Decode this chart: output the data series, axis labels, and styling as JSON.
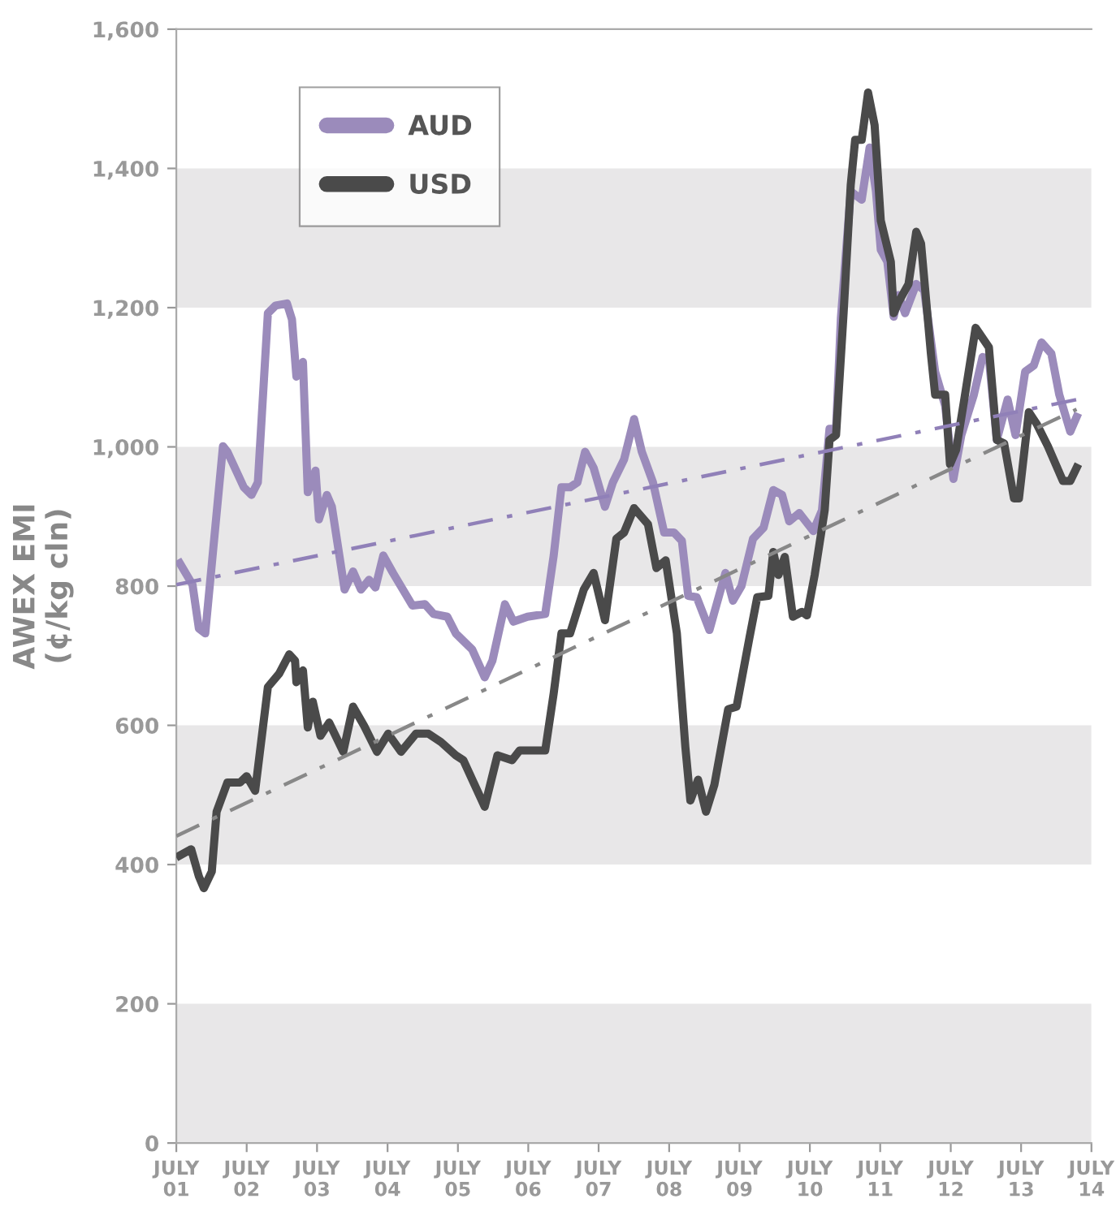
{
  "chart_data": {
    "type": "line",
    "ylabel": "AWEX EMI\n(¢/kg cln)",
    "xlim": [
      "2001-07-01",
      "2014-07-01"
    ],
    "xticks": [
      {
        "value": "2001-07-01",
        "label": "JULY\n01"
      },
      {
        "value": "2002-07-01",
        "label": "JULY\n02"
      },
      {
        "value": "2003-07-01",
        "label": "JULY\n03"
      },
      {
        "value": "2004-07-01",
        "label": "JULY\n04"
      },
      {
        "value": "2005-07-01",
        "label": "JULY\n05"
      },
      {
        "value": "2006-07-01",
        "label": "JULY\n06"
      },
      {
        "value": "2007-07-01",
        "label": "JULY\n07"
      },
      {
        "value": "2008-07-01",
        "label": "JULY\n08"
      },
      {
        "value": "2009-07-01",
        "label": "JULY\n09"
      },
      {
        "value": "2010-07-01",
        "label": "JULY\n10"
      },
      {
        "value": "2011-07-01",
        "label": "JULY\n11"
      },
      {
        "value": "2012-07-01",
        "label": "JULY\n12"
      },
      {
        "value": "2013-07-01",
        "label": "JULY\n13"
      },
      {
        "value": "2014-07-01",
        "label": "JULY\n14"
      }
    ],
    "ylim": [
      0,
      1600
    ],
    "yticks": [
      0,
      200,
      400,
      600,
      800,
      {
        "value": 1000,
        "label": "1,000"
      },
      {
        "value": 1200,
        "label": "1,200"
      },
      {
        "value": 1400,
        "label": "1,400"
      },
      {
        "value": 1600,
        "label": "1,600"
      }
    ],
    "bands": [
      {
        "axis": "y",
        "from": 0,
        "to": 200,
        "color": "#e8e7e8"
      },
      {
        "axis": "y",
        "from": 400,
        "to": 600,
        "color": "#e8e7e8"
      },
      {
        "axis": "y",
        "from": 800,
        "to": 1000,
        "color": "#e8e7e8"
      },
      {
        "axis": "y",
        "from": 1200,
        "to": 1400,
        "color": "#e8e7e8"
      }
    ],
    "legend": "top left",
    "grid": false,
    "marker": "none",
    "series": [
      {
        "name": "AUD",
        "color": "#9b8bbb",
        "line_style": "solid",
        "x": [
          "2001-07-19",
          "2001-09-23",
          "2001-10-26",
          "2001-11-28",
          "2002-02-28",
          "2002-03-23",
          "2002-06-16",
          "2002-07-26",
          "2002-08-28",
          "2002-10-19",
          "2002-11-28",
          "2003-01-26",
          "2003-02-21",
          "2003-03-16",
          "2003-04-19",
          "2003-05-14",
          "2003-06-23",
          "2003-07-11",
          "2003-08-21",
          "2003-09-16",
          "2003-11-21",
          "2004-01-04",
          "2004-02-14",
          "2004-03-27",
          "2004-04-29",
          "2004-06-09",
          "2004-07-29",
          "2004-11-07",
          "2005-01-11",
          "2005-02-25",
          "2005-05-07",
          "2005-06-20",
          "2005-09-13",
          "2005-11-17",
          "2005-12-27",
          "2006-03-02",
          "2006-04-15",
          "2006-06-27",
          "2006-09-27",
          "2006-11-10",
          "2006-12-20",
          "2007-02-03",
          "2007-03-13",
          "2007-04-22",
          "2007-06-05",
          "2007-08-03",
          "2007-09-13",
          "2007-11-10",
          "2008-01-01",
          "2008-02-10",
          "2008-04-08",
          "2008-06-05",
          "2008-07-26",
          "2008-09-05",
          "2008-10-08",
          "2008-11-21",
          "2009-01-26",
          "2009-04-19",
          "2009-05-28",
          "2009-07-11",
          "2009-09-09",
          "2009-11-03",
          "2009-12-23",
          "2010-02-07",
          "2010-03-16",
          "2010-05-07",
          "2010-07-19",
          "2010-09-02",
          "2010-10-11",
          "2010-11-14",
          "2010-12-09",
          "2011-01-29",
          "2011-03-27",
          "2011-05-07",
          "2011-06-09",
          "2011-07-04",
          "2011-08-07",
          "2011-09-09",
          "2011-10-04",
          "2011-11-07",
          "2012-01-04",
          "2012-02-14",
          "2012-04-11",
          "2012-06-02",
          "2012-07-15",
          "2012-08-25",
          "2012-10-29",
          "2012-12-13",
          "2013-01-15",
          "2013-02-25",
          "2013-04-22",
          "2013-06-02",
          "2013-07-22",
          "2013-09-05",
          "2013-10-15",
          "2013-12-05",
          "2014-01-15",
          "2014-03-13",
          "2014-04-15"
        ],
        "values": [
          833,
          802,
          739,
          732,
          1001,
          993,
          942,
          931,
          949,
          1192,
          1203,
          1206,
          1183,
          1101,
          1122,
          935,
          966,
          896,
          931,
          914,
          795,
          821,
          795,
          809,
          798,
          844,
          819,
          772,
          774,
          760,
          756,
          732,
          709,
          669,
          693,
          774,
          749,
          756,
          760,
          844,
          942,
          942,
          949,
          993,
          970,
          914,
          949,
          982,
          1040,
          993,
          949,
          877,
          877,
          865,
          786,
          784,
          737,
          819,
          779,
          800,
          868,
          884,
          938,
          931,
          893,
          905,
          879,
          909,
          1026,
          1026,
          1185,
          1367,
          1355,
          1430,
          1367,
          1283,
          1266,
          1187,
          1218,
          1192,
          1234,
          1225,
          1108,
          1059,
          954,
          1017,
          1075,
          1129,
          1127,
          1010,
          1068,
          1017,
          1108,
          1117,
          1150,
          1134,
          1075,
          1022,
          1043
        ]
      },
      {
        "name": "USD",
        "color": "#4a4a4a",
        "line_style": "solid",
        "x": [
          "2001-07-19",
          "2001-09-16",
          "2001-10-26",
          "2001-11-21",
          "2002-01-01",
          "2002-01-26",
          "2002-03-23",
          "2002-05-28",
          "2002-07-01",
          "2002-08-14",
          "2002-10-19",
          "2002-12-16",
          "2003-02-07",
          "2003-03-09",
          "2003-03-16",
          "2003-04-19",
          "2003-05-14",
          "2003-06-09",
          "2003-07-19",
          "2003-09-02",
          "2003-11-14",
          "2004-01-04",
          "2004-03-02",
          "2004-05-07",
          "2004-07-04",
          "2004-09-09",
          "2004-11-25",
          "2005-01-29",
          "2005-04-04",
          "2005-06-20",
          "2005-07-29",
          "2005-09-20",
          "2005-11-17",
          "2006-01-22",
          "2006-04-08",
          "2006-05-17",
          "2006-07-22",
          "2006-09-27",
          "2006-11-10",
          "2006-12-20",
          "2007-02-03",
          "2007-04-15",
          "2007-06-05",
          "2007-08-03",
          "2007-10-01",
          "2007-11-10",
          "2008-01-01",
          "2008-03-13",
          "2008-04-26",
          "2008-06-13",
          "2008-08-10",
          "2008-09-23",
          "2008-10-19",
          "2008-11-28",
          "2009-01-08",
          "2009-02-21",
          "2009-05-03",
          "2009-06-16",
          "2009-08-21",
          "2009-10-01",
          "2009-11-28",
          "2009-12-23",
          "2010-01-19",
          "2010-02-21",
          "2010-04-04",
          "2010-05-21",
          "2010-06-16",
          "2010-07-26",
          "2010-09-16",
          "2010-10-11",
          "2010-11-14",
          "2010-12-23",
          "2011-01-29",
          "2011-02-21",
          "2011-03-27",
          "2011-04-29",
          "2011-06-02",
          "2011-07-04",
          "2011-08-25",
          "2011-09-09",
          "2011-10-04",
          "2011-11-25",
          "2012-01-04",
          "2012-01-29",
          "2012-03-20",
          "2012-04-11",
          "2012-06-02",
          "2012-06-27",
          "2012-07-29",
          "2012-09-09",
          "2012-11-07",
          "2013-01-15",
          "2013-02-25",
          "2013-04-04",
          "2013-05-25",
          "2013-06-20",
          "2013-08-10",
          "2013-09-20",
          "2013-11-17",
          "2014-02-03",
          "2014-03-13",
          "2014-04-15"
        ],
        "values": [
          413,
          422,
          383,
          366,
          390,
          476,
          518,
          518,
          527,
          506,
          655,
          674,
          702,
          693,
          662,
          679,
          597,
          634,
          585,
          604,
          562,
          627,
          599,
          562,
          588,
          562,
          588,
          588,
          576,
          557,
          550,
          518,
          483,
          557,
          550,
          564,
          564,
          564,
          646,
          732,
          732,
          795,
          819,
          751,
          868,
          877,
          912,
          889,
          826,
          837,
          732,
          569,
          492,
          522,
          476,
          515,
          623,
          627,
          725,
          784,
          786,
          849,
          816,
          842,
          756,
          763,
          758,
          816,
          909,
          1010,
          1017,
          1192,
          1376,
          1441,
          1441,
          1509,
          1462,
          1325,
          1266,
          1192,
          1208,
          1234,
          1309,
          1292,
          1134,
          1075,
          1075,
          975,
          996,
          1068,
          1171,
          1143,
          1010,
          1005,
          926,
          926,
          1050,
          1033,
          1001,
          951,
          951,
          970
        ]
      },
      {
        "color": "#9080b8",
        "line_style": "dashdot",
        "x": [
          "2001-07-01",
          "2014-04-15"
        ],
        "values": [
          802,
          1068
        ]
      },
      {
        "color": "#888888",
        "line_style": "dashdot",
        "x": [
          "2001-07-01",
          "2014-04-15"
        ],
        "values": [
          441,
          1054
        ]
      }
    ]
  }
}
